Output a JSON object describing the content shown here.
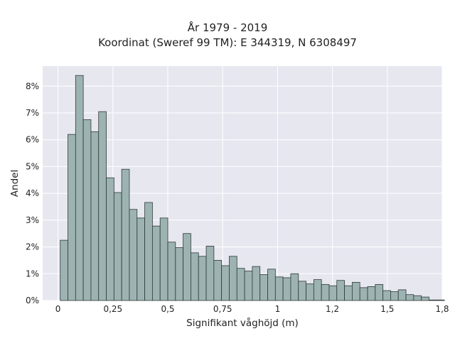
{
  "chart_data": {
    "type": "bar",
    "title": "År 1979 - 2019",
    "subtitle": "Koordinat (Sweref 99 TM): E 344319, N 6308497",
    "xlabel": "Signifikant våghöjd (m)",
    "ylabel": "Andel",
    "bin_width": 0.035,
    "bin_start": 0.01,
    "x_ticks": [
      0,
      0.25,
      0.5,
      0.75,
      1,
      1.25,
      1.5,
      1.75
    ],
    "x_tick_labels": [
      "0",
      "0,25",
      "0,5",
      "0,75",
      "1",
      "1,2",
      "1,5",
      "1,8"
    ],
    "y_ticks": [
      0,
      1,
      2,
      3,
      4,
      5,
      6,
      7,
      8
    ],
    "y_tick_labels": [
      "0%",
      "1%",
      "2%",
      "3%",
      "4%",
      "5%",
      "6%",
      "7%",
      "8%"
    ],
    "xlim": [
      -0.07,
      1.75
    ],
    "ylim": [
      0,
      8.75
    ],
    "values": [
      2.25,
      6.2,
      8.4,
      6.75,
      6.3,
      7.05,
      4.58,
      4.03,
      4.9,
      3.4,
      3.08,
      3.66,
      2.78,
      3.08,
      2.18,
      1.98,
      2.5,
      1.78,
      1.65,
      2.03,
      1.5,
      1.3,
      1.65,
      1.2,
      1.1,
      1.27,
      0.97,
      1.17,
      0.88,
      0.85,
      1.0,
      0.72,
      0.62,
      0.78,
      0.6,
      0.55,
      0.75,
      0.55,
      0.68,
      0.48,
      0.52,
      0.6,
      0.37,
      0.33,
      0.4,
      0.22,
      0.18,
      0.13,
      0.02,
      0.02
    ],
    "grid": true,
    "legend": "none",
    "colors": {
      "bar_fill": "#9db3b1",
      "bar_stroke": "#2f3a39",
      "plot_bg": "#e7e7f0",
      "grid": "#ffffff"
    }
  }
}
